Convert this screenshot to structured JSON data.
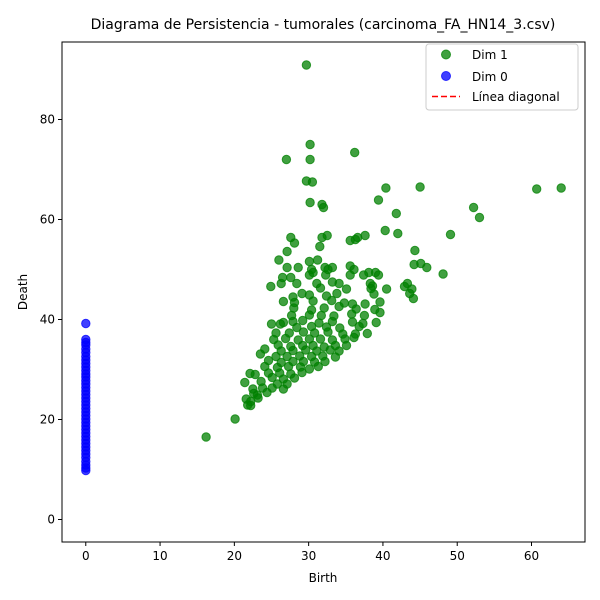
{
  "chart_data": {
    "type": "scatter",
    "title": "Diagrama de Persistencia - tumorales (carcinoma_FA_HN14_3.csv)",
    "xlabel": "Birth",
    "ylabel": "Death",
    "xlim": [
      -3.2,
      67.2
    ],
    "ylim": [
      -4.5,
      95.5
    ],
    "xticks": [
      0,
      10,
      20,
      30,
      40,
      50,
      60
    ],
    "yticks": [
      0,
      20,
      40,
      60,
      80
    ],
    "grid": false,
    "legend_position": "top-right",
    "colors": {
      "dim1": "#008000",
      "dim0": "#0000ff",
      "diagonal": "#ff0000"
    },
    "legend": [
      "Dim 1",
      "Dim 0",
      "Línea diagonal"
    ],
    "series": [
      {
        "name": "Dim 1",
        "color": "#008000",
        "points": [
          [
            29.7,
            90.9
          ],
          [
            30.2,
            75
          ],
          [
            27,
            72
          ],
          [
            30.2,
            72
          ],
          [
            36.2,
            73.4
          ],
          [
            30.5,
            67.5
          ],
          [
            29.7,
            67.7
          ],
          [
            40.4,
            66.3
          ],
          [
            45,
            66.5
          ],
          [
            60.7,
            66.1
          ],
          [
            64,
            66.3
          ],
          [
            30.2,
            63.4
          ],
          [
            31.8,
            63
          ],
          [
            32,
            62.4
          ],
          [
            52.2,
            62.4
          ],
          [
            53,
            60.4
          ],
          [
            41.8,
            61.2
          ],
          [
            39.4,
            63.9
          ],
          [
            40.3,
            57.8
          ],
          [
            42,
            57.2
          ],
          [
            49.1,
            57
          ],
          [
            27.6,
            56.4
          ],
          [
            31.8,
            56.4
          ],
          [
            32.5,
            56.8
          ],
          [
            35.6,
            55.8
          ],
          [
            36.3,
            56
          ],
          [
            36.6,
            56.4
          ],
          [
            37.6,
            56.8
          ],
          [
            28.1,
            55.3
          ],
          [
            31.5,
            54.6
          ],
          [
            27.1,
            53.6
          ],
          [
            44.3,
            53.8
          ],
          [
            26,
            51.9
          ],
          [
            30.1,
            51.6
          ],
          [
            31.2,
            51.9
          ],
          [
            44.2,
            51
          ],
          [
            45.1,
            51.2
          ],
          [
            45.9,
            50.4
          ],
          [
            27.1,
            50.4
          ],
          [
            28.6,
            50.4
          ],
          [
            30.4,
            50
          ],
          [
            32.2,
            50.4
          ],
          [
            32.6,
            50
          ],
          [
            33.2,
            50.4
          ],
          [
            35.6,
            50.7
          ],
          [
            36.1,
            50
          ],
          [
            38.1,
            49.4
          ],
          [
            39,
            49.4
          ],
          [
            39.4,
            48.9
          ],
          [
            48.1,
            49.1
          ],
          [
            26.5,
            48.4
          ],
          [
            27.6,
            48.4
          ],
          [
            30.1,
            48.9
          ],
          [
            30.6,
            49.4
          ],
          [
            32.3,
            48.9
          ],
          [
            35.6,
            48.9
          ],
          [
            37.4,
            48.9
          ],
          [
            26.3,
            47.2
          ],
          [
            28.4,
            47.2
          ],
          [
            31.1,
            47.2
          ],
          [
            33.2,
            47.5
          ],
          [
            34.1,
            47.2
          ],
          [
            38.3,
            47.2
          ],
          [
            38.6,
            46.7
          ],
          [
            24.9,
            46.6
          ],
          [
            31.6,
            46.3
          ],
          [
            35.1,
            46.1
          ],
          [
            38.4,
            46.2
          ],
          [
            40.5,
            46.1
          ],
          [
            42.9,
            46.6
          ],
          [
            43.3,
            47.2
          ],
          [
            43.9,
            46.1
          ],
          [
            29.1,
            45.2
          ],
          [
            30.1,
            44.9
          ],
          [
            32.4,
            44.7
          ],
          [
            33.8,
            45.2
          ],
          [
            38.8,
            45.1
          ],
          [
            43.6,
            45.2
          ],
          [
            27.9,
            44.5
          ],
          [
            26.6,
            43.6
          ],
          [
            28.1,
            43.4
          ],
          [
            30.6,
            43.7
          ],
          [
            33.1,
            43.8
          ],
          [
            34.8,
            43.3
          ],
          [
            35.9,
            43.1
          ],
          [
            37.6,
            43.1
          ],
          [
            39.6,
            43.5
          ],
          [
            44.1,
            44.2
          ],
          [
            28,
            42.3
          ],
          [
            30.4,
            41.9
          ],
          [
            32.1,
            42.3
          ],
          [
            34.1,
            42.6
          ],
          [
            36.4,
            42.1
          ],
          [
            38.9,
            42
          ],
          [
            27.7,
            40.8
          ],
          [
            30.1,
            40.9
          ],
          [
            31.7,
            40.8
          ],
          [
            33.4,
            40.7
          ],
          [
            35.8,
            41.1
          ],
          [
            37.5,
            40.8
          ],
          [
            39.6,
            41.4
          ],
          [
            26.6,
            39.4
          ],
          [
            27.9,
            39.6
          ],
          [
            29.2,
            39.8
          ],
          [
            31.4,
            39.3
          ],
          [
            33.2,
            39.6
          ],
          [
            35.9,
            39.5
          ],
          [
            37.3,
            39.2
          ],
          [
            39.1,
            39.4
          ],
          [
            25,
            39.1
          ],
          [
            26.2,
            39.1
          ],
          [
            28.4,
            38.4
          ],
          [
            30.4,
            38.6
          ],
          [
            32.4,
            38.5
          ],
          [
            34.2,
            38.3
          ],
          [
            36.8,
            38.6
          ],
          [
            25.6,
            37.3
          ],
          [
            27.4,
            37.3
          ],
          [
            29.3,
            37.5
          ],
          [
            30.8,
            37.3
          ],
          [
            32.6,
            37.5
          ],
          [
            34.6,
            37.1
          ],
          [
            36.3,
            37.1
          ],
          [
            37.9,
            37.2
          ],
          [
            25.3,
            36
          ],
          [
            26.9,
            36.2
          ],
          [
            28.6,
            35.9
          ],
          [
            30.1,
            36.1
          ],
          [
            31.6,
            36.1
          ],
          [
            33.2,
            35.9
          ],
          [
            34.9,
            36.1
          ],
          [
            36.1,
            36.4
          ],
          [
            25.9,
            34.9
          ],
          [
            27.6,
            34.6
          ],
          [
            29.2,
            34.8
          ],
          [
            30.6,
            34.8
          ],
          [
            32.1,
            34.5
          ],
          [
            33.6,
            34.8
          ],
          [
            35.1,
            34.8
          ],
          [
            24.1,
            34.1
          ],
          [
            26.3,
            33.7
          ],
          [
            27.9,
            33.8
          ],
          [
            29.6,
            33.9
          ],
          [
            31.1,
            33.7
          ],
          [
            32.9,
            33.9
          ],
          [
            34.1,
            33.7
          ],
          [
            23.5,
            33.1
          ],
          [
            25.6,
            32.6
          ],
          [
            27.1,
            32.6
          ],
          [
            28.8,
            32.7
          ],
          [
            30.4,
            32.6
          ],
          [
            31.9,
            32.7
          ],
          [
            33.6,
            32.5
          ],
          [
            24.6,
            31.8
          ],
          [
            26.3,
            31.4
          ],
          [
            27.9,
            31.6
          ],
          [
            29.3,
            31.6
          ],
          [
            30.8,
            31.5
          ],
          [
            32.2,
            31.6
          ],
          [
            24.1,
            30.6
          ],
          [
            25.8,
            30.4
          ],
          [
            27.3,
            30.6
          ],
          [
            28.9,
            30.5
          ],
          [
            30.1,
            30.1
          ],
          [
            31.3,
            30.6
          ],
          [
            22.1,
            29.2
          ],
          [
            22.8,
            29
          ],
          [
            24.6,
            29.3
          ],
          [
            26.1,
            29.3
          ],
          [
            27.6,
            29.1
          ],
          [
            29.1,
            29.4
          ],
          [
            25.1,
            28.4
          ],
          [
            26.6,
            28.1
          ],
          [
            28.1,
            28.3
          ],
          [
            21.4,
            27.4
          ],
          [
            23.6,
            27.6
          ],
          [
            25.8,
            27.1
          ],
          [
            27.1,
            27.1
          ],
          [
            22.5,
            26.1
          ],
          [
            23.8,
            26.3
          ],
          [
            25.1,
            26.3
          ],
          [
            26.6,
            26.1
          ],
          [
            22.6,
            25.2
          ],
          [
            23.1,
            24.9
          ],
          [
            24.4,
            25.4
          ],
          [
            21.6,
            24.1
          ],
          [
            23.2,
            24.3
          ],
          [
            22.2,
            23.6
          ],
          [
            21.8,
            22.9
          ],
          [
            22.2,
            22.8
          ],
          [
            20.1,
            20.1
          ],
          [
            16.2,
            16.5
          ]
        ]
      },
      {
        "name": "Dim 0",
        "color": "#0000ff",
        "points": [
          [
            0,
            39.2
          ],
          [
            0,
            36
          ],
          [
            0,
            35.4
          ],
          [
            0,
            34.9
          ],
          [
            0,
            34.1
          ],
          [
            0,
            33.4
          ],
          [
            0,
            32.6
          ],
          [
            0,
            31.9
          ],
          [
            0,
            31.2
          ],
          [
            0,
            30.5
          ],
          [
            0,
            29.8
          ],
          [
            0,
            29.1
          ],
          [
            0,
            28.5
          ],
          [
            0,
            27.8
          ],
          [
            0,
            27.1
          ],
          [
            0,
            26.4
          ],
          [
            0,
            25.7
          ],
          [
            0,
            25
          ],
          [
            0,
            24.3
          ],
          [
            0,
            23.6
          ],
          [
            0,
            22.9
          ],
          [
            0,
            22.2
          ],
          [
            0,
            21.5
          ],
          [
            0,
            20.8
          ],
          [
            0,
            20.1
          ],
          [
            0,
            19.4
          ],
          [
            0,
            18.7
          ],
          [
            0,
            18
          ],
          [
            0,
            17.3
          ],
          [
            0,
            16.6
          ],
          [
            0,
            15.9
          ],
          [
            0,
            15.2
          ],
          [
            0,
            14.5
          ],
          [
            0,
            13.8
          ],
          [
            0,
            13.1
          ],
          [
            0,
            12.4
          ],
          [
            0,
            11.6
          ],
          [
            0,
            10.9
          ],
          [
            0,
            10.3
          ],
          [
            0,
            9.8
          ]
        ]
      }
    ]
  }
}
